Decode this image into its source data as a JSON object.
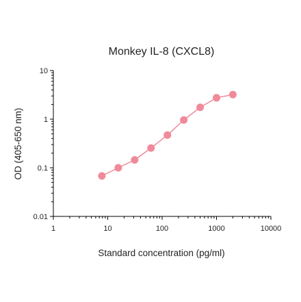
{
  "chart_data": {
    "type": "line",
    "title": "Monkey IL-8 (CXCL8)",
    "xlabel": "Standard concentration (pg/ml)",
    "ylabel": "OD (405-650 nm)",
    "x_scale": "log",
    "y_scale": "log",
    "xlim": [
      1,
      10000
    ],
    "ylim": [
      0.01,
      10
    ],
    "x_ticks": [
      "1",
      "10",
      "100",
      "1000",
      "10000"
    ],
    "y_ticks": [
      "0.01",
      "0.1",
      "1",
      "10"
    ],
    "grid": false,
    "series": [
      {
        "x": [
          7.8,
          15.6,
          31.25,
          62.5,
          125,
          250,
          500,
          1000,
          2000
        ],
        "y": [
          0.068,
          0.1,
          0.145,
          0.255,
          0.47,
          0.96,
          1.75,
          2.75,
          3.2
        ],
        "color": "#f08a9a",
        "marker": "circle"
      }
    ]
  }
}
